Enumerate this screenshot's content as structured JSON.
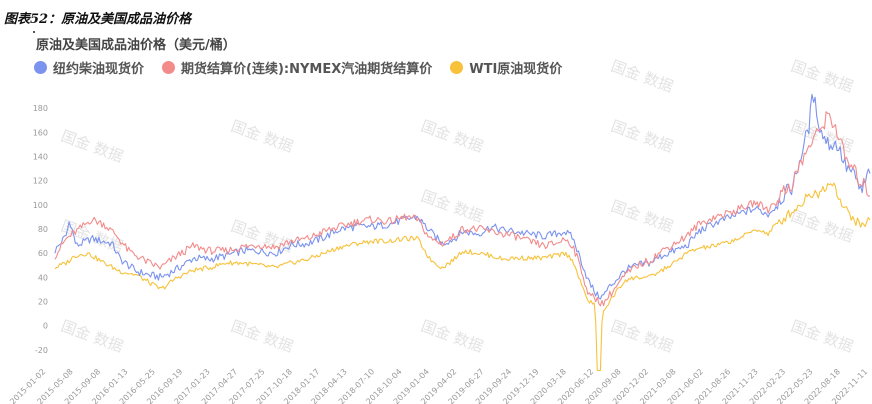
{
  "figure_caption": "图表52：原油及美国成品油价格",
  "colors": {
    "diesel": "#7b93ee",
    "gasoline": "#f38b8b",
    "wti": "#f7c23a",
    "grid": "#eeeeee"
  },
  "watermark_text": "国金 数据",
  "chart_data": {
    "type": "line",
    "title": "原油及美国成品油价格（美元/桶）",
    "ylim": [
      -30,
      190
    ],
    "y_ticks": [
      -20,
      0,
      20,
      40,
      60,
      80,
      100,
      120,
      140,
      160,
      180
    ],
    "y_tick_labels": [
      "-20",
      "0",
      "20",
      "40",
      "60",
      "80",
      "100",
      "120",
      "140",
      "160",
      "180"
    ],
    "legend_position": "top-left",
    "grid": false,
    "x_tick_labels": [
      "2015-01-02",
      "2015-05-08",
      "2015-09-08",
      "2016-01-13",
      "2016-05-25",
      "2016-09-19",
      "2017-01-23",
      "2017-04-27",
      "2017-07-25",
      "2017-10-18",
      "2018-01-17",
      "2018-04-13",
      "2018-07-10",
      "2018-10-04",
      "2019-01-04",
      "2019-04-02",
      "2019-06-27",
      "2019-09-24",
      "2019-12-19",
      "2020-03-18",
      "2020-06-12",
      "2020-09-08",
      "2020-12-02",
      "2021-03-08",
      "2021-06-02",
      "2021-08-26",
      "2021-11-23",
      "2022-02-23",
      "2022-05-23",
      "2022-08-18",
      "2022-11-11"
    ],
    "series": [
      {
        "name": "纽约柴油现货价",
        "color_key": "diesel",
        "points": [
          [
            0.0,
            62
          ],
          [
            0.014,
            75
          ],
          [
            0.018,
            88
          ],
          [
            0.026,
            66
          ],
          [
            0.045,
            72
          ],
          [
            0.07,
            68
          ],
          [
            0.08,
            55
          ],
          [
            0.1,
            45
          ],
          [
            0.115,
            42
          ],
          [
            0.13,
            40
          ],
          [
            0.15,
            47
          ],
          [
            0.17,
            56
          ],
          [
            0.19,
            55
          ],
          [
            0.21,
            58
          ],
          [
            0.23,
            62
          ],
          [
            0.25,
            62
          ],
          [
            0.27,
            60
          ],
          [
            0.29,
            67
          ],
          [
            0.31,
            68
          ],
          [
            0.33,
            73
          ],
          [
            0.35,
            80
          ],
          [
            0.37,
            82
          ],
          [
            0.39,
            82
          ],
          [
            0.41,
            84
          ],
          [
            0.43,
            88
          ],
          [
            0.445,
            90
          ],
          [
            0.46,
            78
          ],
          [
            0.475,
            68
          ],
          [
            0.49,
            72
          ],
          [
            0.5,
            78
          ],
          [
            0.52,
            76
          ],
          [
            0.535,
            82
          ],
          [
            0.55,
            79
          ],
          [
            0.565,
            78
          ],
          [
            0.58,
            76
          ],
          [
            0.6,
            74
          ],
          [
            0.615,
            76
          ],
          [
            0.625,
            78
          ],
          [
            0.635,
            73
          ],
          [
            0.645,
            55
          ],
          [
            0.655,
            36
          ],
          [
            0.665,
            25
          ],
          [
            0.672,
            24
          ],
          [
            0.68,
            32
          ],
          [
            0.7,
            46
          ],
          [
            0.715,
            50
          ],
          [
            0.73,
            52
          ],
          [
            0.745,
            58
          ],
          [
            0.76,
            62
          ],
          [
            0.775,
            66
          ],
          [
            0.79,
            78
          ],
          [
            0.81,
            85
          ],
          [
            0.83,
            90
          ],
          [
            0.845,
            94
          ],
          [
            0.86,
            97
          ],
          [
            0.875,
            92
          ],
          [
            0.89,
            105
          ],
          [
            0.905,
            115
          ],
          [
            0.915,
            140
          ],
          [
            0.925,
            165
          ],
          [
            0.93,
            192
          ],
          [
            0.94,
            160
          ],
          [
            0.95,
            150
          ],
          [
            0.96,
            150
          ],
          [
            0.97,
            132
          ],
          [
            0.98,
            125
          ],
          [
            0.99,
            110
          ],
          [
            1.0,
            130
          ]
        ]
      },
      {
        "name": "期货结算价(连续):NYMEX汽油期货结算价",
        "color_key": "gasoline",
        "points": [
          [
            0.0,
            58
          ],
          [
            0.014,
            72
          ],
          [
            0.03,
            80
          ],
          [
            0.045,
            88
          ],
          [
            0.06,
            84
          ],
          [
            0.075,
            75
          ],
          [
            0.09,
            62
          ],
          [
            0.1,
            58
          ],
          [
            0.115,
            52
          ],
          [
            0.13,
            48
          ],
          [
            0.15,
            58
          ],
          [
            0.17,
            66
          ],
          [
            0.19,
            62
          ],
          [
            0.21,
            62
          ],
          [
            0.23,
            65
          ],
          [
            0.25,
            67
          ],
          [
            0.27,
            65
          ],
          [
            0.29,
            70
          ],
          [
            0.31,
            72
          ],
          [
            0.33,
            78
          ],
          [
            0.35,
            82
          ],
          [
            0.37,
            86
          ],
          [
            0.39,
            88
          ],
          [
            0.41,
            86
          ],
          [
            0.43,
            90
          ],
          [
            0.445,
            88
          ],
          [
            0.46,
            72
          ],
          [
            0.475,
            68
          ],
          [
            0.49,
            74
          ],
          [
            0.5,
            80
          ],
          [
            0.52,
            80
          ],
          [
            0.535,
            78
          ],
          [
            0.55,
            76
          ],
          [
            0.565,
            74
          ],
          [
            0.58,
            70
          ],
          [
            0.6,
            66
          ],
          [
            0.615,
            68
          ],
          [
            0.625,
            72
          ],
          [
            0.635,
            67
          ],
          [
            0.645,
            48
          ],
          [
            0.655,
            25
          ],
          [
            0.665,
            22
          ],
          [
            0.672,
            18
          ],
          [
            0.68,
            25
          ],
          [
            0.7,
            42
          ],
          [
            0.715,
            50
          ],
          [
            0.73,
            54
          ],
          [
            0.745,
            62
          ],
          [
            0.76,
            68
          ],
          [
            0.775,
            74
          ],
          [
            0.79,
            84
          ],
          [
            0.81,
            90
          ],
          [
            0.83,
            94
          ],
          [
            0.845,
            98
          ],
          [
            0.86,
            102
          ],
          [
            0.875,
            96
          ],
          [
            0.89,
            108
          ],
          [
            0.905,
            118
          ],
          [
            0.915,
            134
          ],
          [
            0.925,
            148
          ],
          [
            0.935,
            158
          ],
          [
            0.945,
            170
          ],
          [
            0.95,
            175
          ],
          [
            0.96,
            160
          ],
          [
            0.97,
            138
          ],
          [
            0.98,
            128
          ],
          [
            0.99,
            118
          ],
          [
            1.0,
            110
          ]
        ]
      },
      {
        "name": "WTI原油现货价",
        "color_key": "wti",
        "points": [
          [
            0.0,
            48
          ],
          [
            0.014,
            52
          ],
          [
            0.025,
            58
          ],
          [
            0.04,
            60
          ],
          [
            0.06,
            52
          ],
          [
            0.08,
            45
          ],
          [
            0.1,
            42
          ],
          [
            0.12,
            34
          ],
          [
            0.13,
            30
          ],
          [
            0.15,
            40
          ],
          [
            0.17,
            46
          ],
          [
            0.19,
            48
          ],
          [
            0.21,
            52
          ],
          [
            0.23,
            52
          ],
          [
            0.25,
            50
          ],
          [
            0.27,
            48
          ],
          [
            0.29,
            52
          ],
          [
            0.31,
            55
          ],
          [
            0.33,
            60
          ],
          [
            0.35,
            65
          ],
          [
            0.37,
            68
          ],
          [
            0.39,
            70
          ],
          [
            0.41,
            70
          ],
          [
            0.43,
            72
          ],
          [
            0.445,
            72
          ],
          [
            0.46,
            55
          ],
          [
            0.475,
            48
          ],
          [
            0.49,
            55
          ],
          [
            0.5,
            62
          ],
          [
            0.52,
            60
          ],
          [
            0.535,
            58
          ],
          [
            0.55,
            55
          ],
          [
            0.565,
            56
          ],
          [
            0.58,
            56
          ],
          [
            0.6,
            56
          ],
          [
            0.615,
            58
          ],
          [
            0.625,
            60
          ],
          [
            0.635,
            55
          ],
          [
            0.645,
            35
          ],
          [
            0.655,
            20
          ],
          [
            0.662,
            18
          ],
          [
            0.667,
            -37
          ],
          [
            0.672,
            10
          ],
          [
            0.68,
            20
          ],
          [
            0.7,
            38
          ],
          [
            0.715,
            40
          ],
          [
            0.73,
            40
          ],
          [
            0.745,
            46
          ],
          [
            0.76,
            52
          ],
          [
            0.775,
            60
          ],
          [
            0.79,
            64
          ],
          [
            0.81,
            66
          ],
          [
            0.83,
            70
          ],
          [
            0.845,
            74
          ],
          [
            0.86,
            80
          ],
          [
            0.875,
            76
          ],
          [
            0.89,
            86
          ],
          [
            0.905,
            95
          ],
          [
            0.915,
            100
          ],
          [
            0.925,
            110
          ],
          [
            0.935,
            108
          ],
          [
            0.945,
            115
          ],
          [
            0.955,
            120
          ],
          [
            0.965,
            100
          ],
          [
            0.975,
            92
          ],
          [
            0.985,
            85
          ],
          [
            0.993,
            82
          ],
          [
            1.0,
            90
          ]
        ]
      }
    ]
  }
}
